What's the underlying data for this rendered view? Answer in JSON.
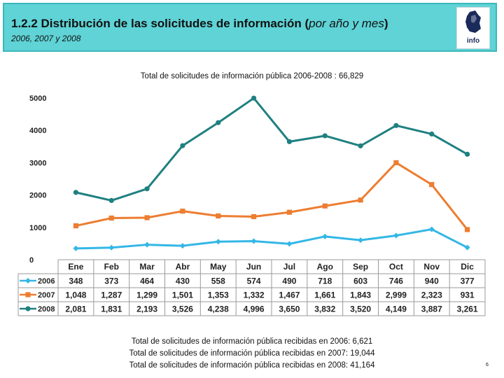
{
  "header": {
    "title_prefix": "1.2.2 Distribución de las solicitudes de información (",
    "title_italic": "por año y mes",
    "title_suffix": ")",
    "subtitle": "2006, 2007 y 2008",
    "logo_text": "info"
  },
  "chart_data": {
    "type": "line",
    "title": "Total de solicitudes de información pública 2006-2008 : 66,829",
    "categories": [
      "Ene",
      "Feb",
      "Mar",
      "Abr",
      "May",
      "Jun",
      "Jul",
      "Ago",
      "Sep",
      "Oct",
      "Nov",
      "Dic"
    ],
    "yticks": [
      "5000",
      "4000",
      "3000",
      "2000",
      "1000",
      "0"
    ],
    "ylim": [
      0,
      5000
    ],
    "series": [
      {
        "name": "2006",
        "color": "#33b7e6",
        "marker": "diamond",
        "values": [
          348,
          373,
          464,
          430,
          558,
          574,
          490,
          718,
          603,
          746,
          940,
          377
        ],
        "labels": [
          "348",
          "373",
          "464",
          "430",
          "558",
          "574",
          "490",
          "718",
          "603",
          "746",
          "940",
          "377"
        ]
      },
      {
        "name": "2007",
        "color": "#ed7d31",
        "marker": "square",
        "values": [
          1048,
          1287,
          1299,
          1501,
          1353,
          1332,
          1467,
          1661,
          1843,
          2999,
          2323,
          931
        ],
        "labels": [
          "1,048",
          "1,287",
          "1,299",
          "1,501",
          "1,353",
          "1,332",
          "1,467",
          "1,661",
          "1,843",
          "2,999",
          "2,323",
          "931"
        ]
      },
      {
        "name": "2008",
        "color": "#1f8080",
        "marker": "circle",
        "values": [
          2081,
          1831,
          2193,
          3526,
          4238,
          4996,
          3650,
          3832,
          3520,
          4149,
          3887,
          3261
        ],
        "labels": [
          "2,081",
          "1,831",
          "2,193",
          "3,526",
          "4,238",
          "4,996",
          "3,650",
          "3,832",
          "3,520",
          "4,149",
          "3,887",
          "3,261"
        ]
      }
    ]
  },
  "footer": {
    "lines": [
      "Total de solicitudes de información pública recibidas en 2006: 6,621",
      "Total de solicitudes de información pública recibidas en 2007: 19,044",
      "Total de solicitudes de información pública recibidas en 2008: 41,164"
    ]
  },
  "page": {
    "number": "6"
  }
}
